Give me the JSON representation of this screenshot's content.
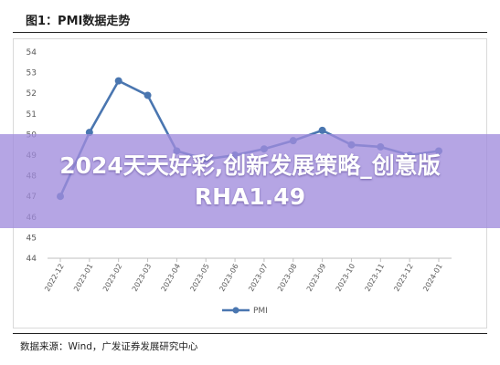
{
  "figure_title": "图1：PMI数据走势",
  "source_note": "数据来源：Wind，广发证券发展研究中心",
  "overlay_banner": "2024天天好彩,创新发展策略_创意版RHA1.49",
  "colors": {
    "series": "#4a76b0",
    "grid": "#d9d9d9",
    "banner": "#a08cdc"
  },
  "chart_data": {
    "type": "line",
    "title": "",
    "xlabel": "",
    "ylabel": "",
    "ylim": [
      44,
      54
    ],
    "yticks": [
      44,
      45,
      46,
      47,
      48,
      49,
      50,
      51,
      52,
      53,
      54
    ],
    "grid": false,
    "legend_position": "bottom",
    "categories": [
      "2022-12",
      "2023-01",
      "2023-02",
      "2023-03",
      "2023-04",
      "2023-05",
      "2023-06",
      "2023-07",
      "2023-08",
      "2023-09",
      "2023-10",
      "2023-11",
      "2023-12",
      "2024-01"
    ],
    "series": [
      {
        "name": "PMI",
        "values": [
          47.0,
          50.1,
          52.6,
          51.9,
          49.2,
          48.8,
          49.0,
          49.3,
          49.7,
          50.2,
          49.5,
          49.4,
          49.0,
          49.2
        ]
      }
    ]
  }
}
